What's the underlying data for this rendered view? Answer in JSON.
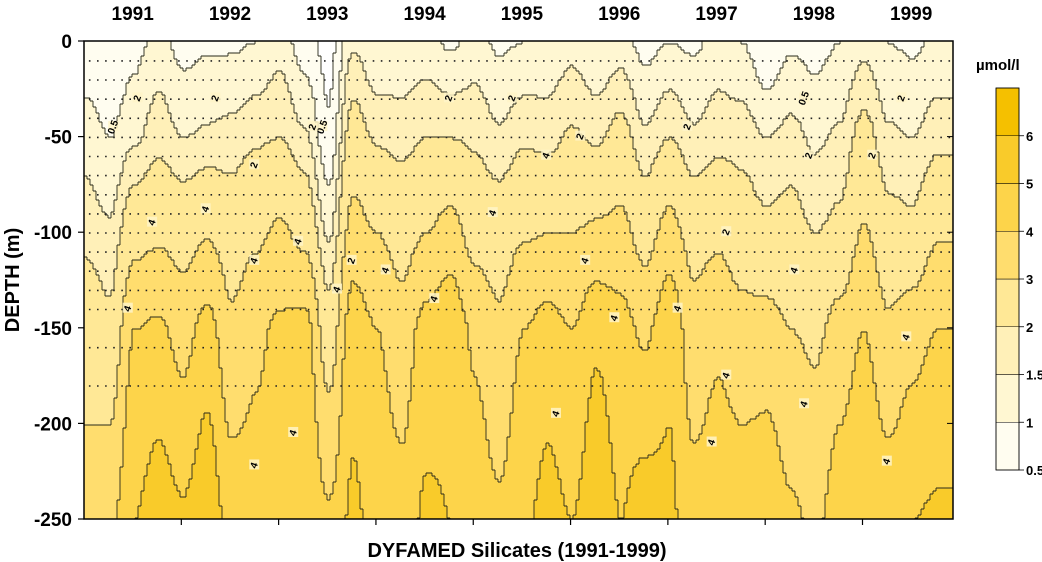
{
  "chart_data": {
    "type": "heatmap",
    "subtype": "filled-contour",
    "title": "",
    "xlabel": "DYFAMED Silicates (1991-1999)",
    "ylabel": "DEPTH (m)",
    "years": [
      "1991",
      "1992",
      "1993",
      "1994",
      "1995",
      "1996",
      "1997",
      "1998",
      "1999"
    ],
    "x_range": [
      "1991-01",
      "1999-12"
    ],
    "ylim": [
      -250,
      0
    ],
    "y_ticks": [
      "0",
      "-50",
      "-100",
      "-150",
      "-200",
      "-250"
    ],
    "y_tick_values": [
      0,
      -50,
      -100,
      -150,
      -200,
      -250
    ],
    "colorbar": {
      "unit": "µmol/l",
      "levels": [
        0.5,
        1,
        1.5,
        2,
        3,
        4,
        5,
        6
      ],
      "level_labels": [
        "0.5",
        "1",
        "1.5",
        "2",
        "3",
        "4",
        "5",
        "6"
      ],
      "colors": [
        "#fffdf0",
        "#fff7d2",
        "#fff0b8",
        "#ffe896",
        "#ffdd6e",
        "#fdd44a",
        "#f9cb2a",
        "#f5c000"
      ]
    },
    "contour_labels": [
      "0.5",
      "2",
      "4"
    ],
    "surface_profile": [
      [
        1991.0,
        0.6,
        1.3,
        1.8,
        2.6,
        3.4
      ],
      [
        1991.25,
        0.5,
        1.0,
        1.6,
        2.2,
        3.8
      ],
      [
        1991.5,
        0.8,
        1.4,
        2.6,
        4.0,
        5.0
      ],
      [
        1991.75,
        1.2,
        1.8,
        2.8,
        4.2,
        5.6
      ],
      [
        1992.0,
        0.8,
        1.5,
        2.6,
        3.6,
        5.2
      ],
      [
        1992.25,
        0.9,
        1.6,
        2.9,
        4.4,
        5.8
      ],
      [
        1992.5,
        0.9,
        1.7,
        2.5,
        3.2,
        4.6
      ],
      [
        1992.75,
        1.0,
        1.9,
        2.8,
        3.8,
        4.4
      ],
      [
        1993.0,
        1.3,
        2.0,
        3.2,
        4.2,
        4.6
      ],
      [
        1993.25,
        0.7,
        1.6,
        2.7,
        4.4,
        5.0
      ],
      [
        1993.5,
        0.3,
        0.6,
        1.4,
        2.4,
        4.2
      ],
      [
        1993.75,
        1.4,
        2.4,
        3.4,
        4.6,
        5.2
      ],
      [
        1994.0,
        1.0,
        1.9,
        3.0,
        4.0,
        4.6
      ],
      [
        1994.25,
        1.1,
        1.8,
        2.6,
        3.4,
        4.4
      ],
      [
        1994.5,
        1.2,
        2.0,
        3.0,
        4.4,
        5.2
      ],
      [
        1994.75,
        0.9,
        2.0,
        3.4,
        4.8,
        5.0
      ],
      [
        1995.0,
        1.2,
        1.9,
        2.6,
        3.8,
        4.6
      ],
      [
        1995.25,
        0.9,
        1.6,
        2.5,
        3.2,
        4.2
      ],
      [
        1995.5,
        1.0,
        1.9,
        2.9,
        4.0,
        4.8
      ],
      [
        1995.75,
        1.1,
        1.8,
        3.0,
        4.4,
        5.4
      ],
      [
        1996.0,
        1.3,
        2.1,
        3.0,
        4.0,
        5.0
      ],
      [
        1996.25,
        1.0,
        1.9,
        3.2,
        4.8,
        5.8
      ],
      [
        1996.5,
        1.2,
        2.3,
        3.3,
        4.4,
        5.0
      ],
      [
        1996.75,
        0.8,
        1.6,
        2.6,
        3.8,
        5.6
      ],
      [
        1997.0,
        1.0,
        2.0,
        3.4,
        4.8,
        5.2
      ],
      [
        1997.25,
        0.9,
        1.6,
        2.6,
        3.4,
        4.4
      ],
      [
        1997.5,
        1.2,
        1.8,
        2.8,
        3.8,
        4.6
      ],
      [
        1997.75,
        1.0,
        1.8,
        2.4,
        3.4,
        4.6
      ],
      [
        1998.0,
        0.5,
        1.5,
        2.2,
        3.4,
        4.8
      ],
      [
        1998.25,
        0.9,
        1.7,
        2.3,
        3.0,
        4.2
      ],
      [
        1998.5,
        0.8,
        1.4,
        2.0,
        2.8,
        3.8
      ],
      [
        1998.75,
        1.0,
        1.6,
        2.2,
        3.4,
        4.6
      ],
      [
        1999.0,
        1.3,
        2.3,
        3.1,
        4.0,
        5.0
      ],
      [
        1999.25,
        1.0,
        1.6,
        2.3,
        3.2,
        4.6
      ],
      [
        1999.5,
        0.9,
        1.5,
        2.2,
        3.6,
        5.0
      ],
      [
        1999.75,
        1.1,
        1.8,
        2.9,
        4.0,
        5.2
      ]
    ],
    "surface_depths": [
      0,
      -50,
      -100,
      -150,
      -250
    ]
  }
}
